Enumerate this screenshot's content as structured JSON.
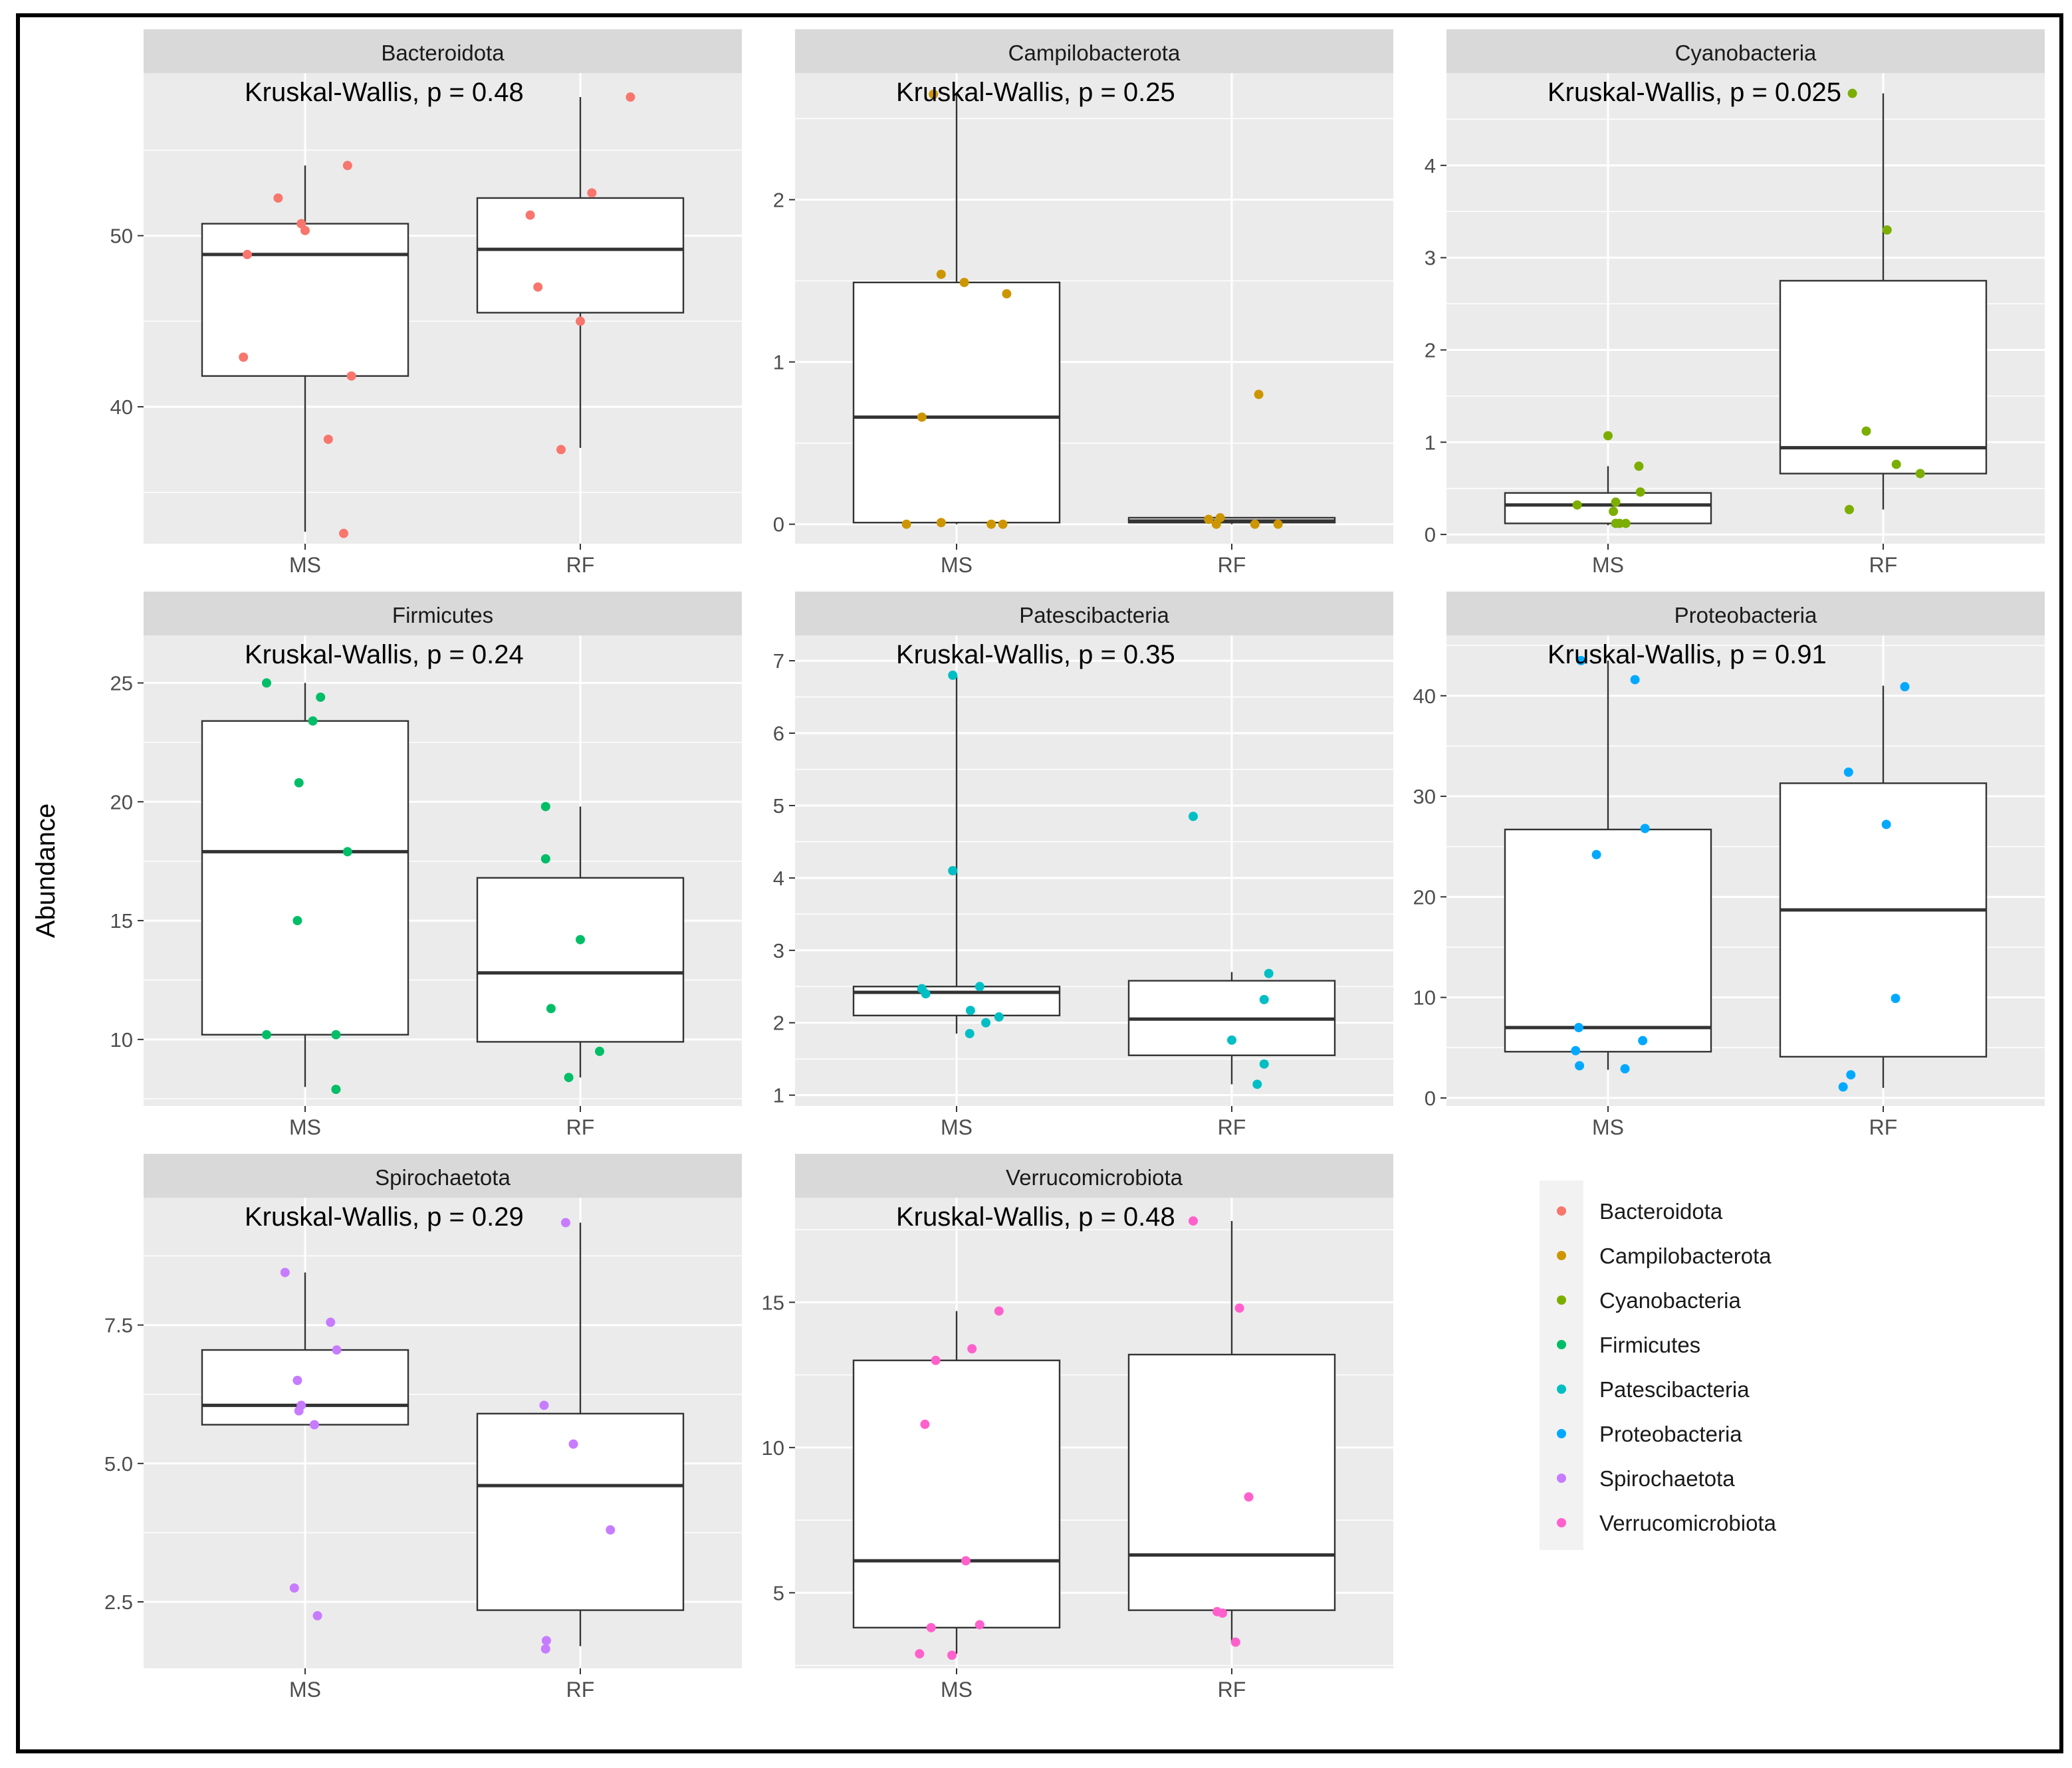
{
  "figure": {
    "ylabel": "Abundance",
    "groups": [
      "MS",
      "RF"
    ]
  },
  "chart_data": [
    {
      "type": "box",
      "title": "Bacteroidota",
      "annotation": "Kruskal-Wallis, p = 0.48",
      "color": "#F8766D",
      "categories": [
        "MS",
        "RF"
      ],
      "ylim": [
        32,
        59.5
      ],
      "yticks": [
        40,
        50
      ],
      "ytick_labels": [
        "40",
        "50"
      ],
      "boxes": [
        {
          "group": "MS",
          "whisker_low": 32.7,
          "q1": 41.8,
          "median": 48.9,
          "q3": 50.7,
          "whisker_high": 54.1
        },
        {
          "group": "RF",
          "whisker_low": 37.6,
          "q1": 45.5,
          "median": 49.2,
          "q3": 52.2,
          "whisker_high": 58.1
        }
      ],
      "points": [
        {
          "group": "MS",
          "y": 52.2,
          "jitter": -0.35
        },
        {
          "group": "MS",
          "y": 50.7,
          "jitter": -0.05
        },
        {
          "group": "MS",
          "y": 50.3,
          "jitter": 0.0
        },
        {
          "group": "MS",
          "y": 54.1,
          "jitter": 0.55
        },
        {
          "group": "MS",
          "y": 48.9,
          "jitter": -0.75
        },
        {
          "group": "MS",
          "y": 42.9,
          "jitter": -0.8
        },
        {
          "group": "MS",
          "y": 41.8,
          "jitter": 0.6
        },
        {
          "group": "MS",
          "y": 38.1,
          "jitter": 0.3
        },
        {
          "group": "MS",
          "y": 32.6,
          "jitter": 0.5
        },
        {
          "group": "RF",
          "y": 58.1,
          "jitter": 0.65
        },
        {
          "group": "RF",
          "y": 52.5,
          "jitter": 0.15
        },
        {
          "group": "RF",
          "y": 51.2,
          "jitter": -0.65
        },
        {
          "group": "RF",
          "y": 47.0,
          "jitter": -0.55
        },
        {
          "group": "RF",
          "y": 45.0,
          "jitter": 0.0
        },
        {
          "group": "RF",
          "y": 37.5,
          "jitter": -0.25
        }
      ]
    },
    {
      "type": "box",
      "title": "Campilobacterota",
      "annotation": "Kruskal-Wallis, p = 0.25",
      "color": "#CD9600",
      "categories": [
        "MS",
        "RF"
      ],
      "ylim": [
        -0.12,
        2.78
      ],
      "yticks": [
        0,
        1,
        2
      ],
      "ytick_labels": [
        "0",
        "1",
        "2"
      ],
      "boxes": [
        {
          "group": "MS",
          "whisker_low": 0.0,
          "q1": 0.01,
          "median": 0.66,
          "q3": 1.49,
          "whisker_high": 2.65
        },
        {
          "group": "RF",
          "whisker_low": 0.0,
          "q1": 0.01,
          "median": 0.02,
          "q3": 0.04,
          "whisker_high": 0.04
        }
      ],
      "points": [
        {
          "group": "MS",
          "y": 2.65,
          "jitter": -0.3
        },
        {
          "group": "MS",
          "y": 1.54,
          "jitter": -0.2
        },
        {
          "group": "MS",
          "y": 1.49,
          "jitter": 0.1
        },
        {
          "group": "MS",
          "y": 1.42,
          "jitter": 0.65
        },
        {
          "group": "MS",
          "y": 0.66,
          "jitter": -0.45
        },
        {
          "group": "MS",
          "y": 0.0,
          "jitter": -0.65
        },
        {
          "group": "MS",
          "y": 0.01,
          "jitter": -0.2
        },
        {
          "group": "MS",
          "y": 0.0,
          "jitter": 0.45
        },
        {
          "group": "MS",
          "y": 0.0,
          "jitter": 0.6
        },
        {
          "group": "RF",
          "y": 0.8,
          "jitter": 0.35
        },
        {
          "group": "RF",
          "y": 0.03,
          "jitter": -0.3
        },
        {
          "group": "RF",
          "y": 0.04,
          "jitter": -0.15
        },
        {
          "group": "RF",
          "y": 0.0,
          "jitter": -0.2
        },
        {
          "group": "RF",
          "y": 0.0,
          "jitter": 0.3
        },
        {
          "group": "RF",
          "y": 0.0,
          "jitter": 0.6
        }
      ]
    },
    {
      "type": "box",
      "title": "Cyanobacteria",
      "annotation": "Kruskal-Wallis, p = 0.025",
      "color": "#7CAE00",
      "categories": [
        "MS",
        "RF"
      ],
      "ylim": [
        -0.1,
        5.0
      ],
      "yticks": [
        0,
        1,
        2,
        3,
        4
      ],
      "ytick_labels": [
        "0",
        "1",
        "2",
        "3",
        "4"
      ],
      "boxes": [
        {
          "group": "MS",
          "whisker_low": 0.1,
          "q1": 0.12,
          "median": 0.32,
          "q3": 0.45,
          "whisker_high": 0.74
        },
        {
          "group": "RF",
          "whisker_low": 0.27,
          "q1": 0.66,
          "median": 0.94,
          "q3": 2.75,
          "whisker_high": 4.78
        }
      ],
      "points": [
        {
          "group": "MS",
          "y": 1.07,
          "jitter": 0.0
        },
        {
          "group": "MS",
          "y": 0.74,
          "jitter": 0.4
        },
        {
          "group": "MS",
          "y": 0.46,
          "jitter": 0.42
        },
        {
          "group": "MS",
          "y": 0.35,
          "jitter": 0.1
        },
        {
          "group": "MS",
          "y": 0.32,
          "jitter": -0.4
        },
        {
          "group": "MS",
          "y": 0.25,
          "jitter": 0.07
        },
        {
          "group": "MS",
          "y": 0.12,
          "jitter": 0.1
        },
        {
          "group": "MS",
          "y": 0.12,
          "jitter": 0.15
        },
        {
          "group": "MS",
          "y": 0.12,
          "jitter": 0.23
        },
        {
          "group": "RF",
          "y": 4.78,
          "jitter": -0.4
        },
        {
          "group": "RF",
          "y": 3.3,
          "jitter": 0.05
        },
        {
          "group": "RF",
          "y": 1.12,
          "jitter": -0.22
        },
        {
          "group": "RF",
          "y": 0.76,
          "jitter": 0.17
        },
        {
          "group": "RF",
          "y": 0.66,
          "jitter": 0.48
        },
        {
          "group": "RF",
          "y": 0.27,
          "jitter": -0.44
        }
      ]
    },
    {
      "type": "box",
      "title": "Firmicutes",
      "annotation": "Kruskal-Wallis, p = 0.24",
      "color": "#00BE67",
      "categories": [
        "MS",
        "RF"
      ],
      "ylim": [
        7.2,
        27.0
      ],
      "yticks": [
        10,
        15,
        20,
        25
      ],
      "ytick_labels": [
        "10",
        "15",
        "20",
        "25"
      ],
      "boxes": [
        {
          "group": "MS",
          "whisker_low": 8.0,
          "q1": 10.2,
          "median": 17.9,
          "q3": 23.4,
          "whisker_high": 25.0
        },
        {
          "group": "RF",
          "whisker_low": 8.4,
          "q1": 9.9,
          "median": 12.8,
          "q3": 16.8,
          "whisker_high": 19.8
        }
      ],
      "points": [
        {
          "group": "MS",
          "y": 25.0,
          "jitter": -0.5
        },
        {
          "group": "MS",
          "y": 24.4,
          "jitter": 0.2
        },
        {
          "group": "MS",
          "y": 23.4,
          "jitter": 0.1
        },
        {
          "group": "MS",
          "y": 20.8,
          "jitter": -0.08
        },
        {
          "group": "MS",
          "y": 17.9,
          "jitter": 0.55
        },
        {
          "group": "MS",
          "y": 15.0,
          "jitter": -0.1
        },
        {
          "group": "MS",
          "y": 10.2,
          "jitter": -0.5
        },
        {
          "group": "MS",
          "y": 10.2,
          "jitter": 0.4
        },
        {
          "group": "MS",
          "y": 7.9,
          "jitter": 0.4
        },
        {
          "group": "RF",
          "y": 19.8,
          "jitter": -0.45
        },
        {
          "group": "RF",
          "y": 17.6,
          "jitter": -0.45
        },
        {
          "group": "RF",
          "y": 14.2,
          "jitter": 0.0
        },
        {
          "group": "RF",
          "y": 11.3,
          "jitter": -0.38
        },
        {
          "group": "RF",
          "y": 9.5,
          "jitter": 0.25
        },
        {
          "group": "RF",
          "y": 8.4,
          "jitter": -0.15
        }
      ]
    },
    {
      "type": "box",
      "title": "Patescibacteria",
      "annotation": "Kruskal-Wallis, p = 0.35",
      "color": "#00BFC4",
      "categories": [
        "MS",
        "RF"
      ],
      "ylim": [
        0.85,
        7.35
      ],
      "yticks": [
        1,
        2,
        3,
        4,
        5,
        6,
        7
      ],
      "ytick_labels": [
        "1",
        "2",
        "3",
        "4",
        "5",
        "6",
        "7"
      ],
      "boxes": [
        {
          "group": "MS",
          "whisker_low": 1.85,
          "q1": 2.1,
          "median": 2.42,
          "q3": 2.5,
          "whisker_high": 6.8
        },
        {
          "group": "RF",
          "whisker_low": 1.15,
          "q1": 1.55,
          "median": 2.05,
          "q3": 2.58,
          "whisker_high": 2.7
        }
      ],
      "points": [
        {
          "group": "MS",
          "y": 6.8,
          "jitter": -0.05
        },
        {
          "group": "MS",
          "y": 4.1,
          "jitter": -0.05
        },
        {
          "group": "MS",
          "y": 2.5,
          "jitter": 0.3
        },
        {
          "group": "MS",
          "y": 2.47,
          "jitter": -0.45
        },
        {
          "group": "MS",
          "y": 2.4,
          "jitter": -0.4
        },
        {
          "group": "MS",
          "y": 2.17,
          "jitter": 0.18
        },
        {
          "group": "MS",
          "y": 2.08,
          "jitter": 0.55
        },
        {
          "group": "MS",
          "y": 2.0,
          "jitter": 0.38
        },
        {
          "group": "MS",
          "y": 1.85,
          "jitter": 0.17
        },
        {
          "group": "RF",
          "y": 4.85,
          "jitter": -0.5
        },
        {
          "group": "RF",
          "y": 2.68,
          "jitter": 0.48
        },
        {
          "group": "RF",
          "y": 2.32,
          "jitter": 0.42
        },
        {
          "group": "RF",
          "y": 1.76,
          "jitter": 0.0
        },
        {
          "group": "RF",
          "y": 1.43,
          "jitter": 0.42
        },
        {
          "group": "RF",
          "y": 1.15,
          "jitter": 0.33
        }
      ]
    },
    {
      "type": "box",
      "title": "Proteobacteria",
      "annotation": "Kruskal-Wallis, p = 0.91",
      "color": "#00A9FF",
      "categories": [
        "MS",
        "RF"
      ],
      "ylim": [
        -0.8,
        46.0
      ],
      "yticks": [
        0,
        10,
        20,
        30,
        40
      ],
      "ytick_labels": [
        "0",
        "10",
        "20",
        "30",
        "40"
      ],
      "boxes": [
        {
          "group": "MS",
          "whisker_low": 2.8,
          "q1": 4.6,
          "median": 7.0,
          "q3": 26.7,
          "whisker_high": 43.5
        },
        {
          "group": "RF",
          "whisker_low": 1.0,
          "q1": 4.1,
          "median": 18.7,
          "q3": 31.3,
          "whisker_high": 41.0
        }
      ],
      "points": [
        {
          "group": "MS",
          "y": 43.5,
          "jitter": -0.35
        },
        {
          "group": "MS",
          "y": 41.6,
          "jitter": 0.35
        },
        {
          "group": "MS",
          "y": 26.8,
          "jitter": 0.48
        },
        {
          "group": "MS",
          "y": 24.2,
          "jitter": -0.15
        },
        {
          "group": "MS",
          "y": 7.0,
          "jitter": -0.38
        },
        {
          "group": "MS",
          "y": 5.7,
          "jitter": 0.45
        },
        {
          "group": "MS",
          "y": 4.7,
          "jitter": -0.42
        },
        {
          "group": "MS",
          "y": 3.2,
          "jitter": -0.37
        },
        {
          "group": "MS",
          "y": 2.9,
          "jitter": 0.22
        },
        {
          "group": "RF",
          "y": 40.9,
          "jitter": 0.28
        },
        {
          "group": "RF",
          "y": 32.4,
          "jitter": -0.45
        },
        {
          "group": "RF",
          "y": 27.2,
          "jitter": 0.04
        },
        {
          "group": "RF",
          "y": 9.9,
          "jitter": 0.16
        },
        {
          "group": "RF",
          "y": 2.3,
          "jitter": -0.42
        },
        {
          "group": "RF",
          "y": 1.1,
          "jitter": -0.52
        }
      ]
    },
    {
      "type": "box",
      "title": "Spirochaetota",
      "annotation": "Kruskal-Wallis, p = 0.29",
      "color": "#C77CFF",
      "categories": [
        "MS",
        "RF"
      ],
      "ylim": [
        1.3,
        9.8
      ],
      "yticks": [
        2.5,
        5.0,
        7.5
      ],
      "ytick_labels": [
        "2.5",
        "5.0",
        "7.5"
      ],
      "boxes": [
        {
          "group": "MS",
          "whisker_low": 5.7,
          "q1": 5.7,
          "median": 6.05,
          "q3": 7.05,
          "whisker_high": 8.45
        },
        {
          "group": "RF",
          "whisker_low": 1.7,
          "q1": 2.35,
          "median": 4.6,
          "q3": 5.9,
          "whisker_high": 9.35
        }
      ],
      "points": [
        {
          "group": "MS",
          "y": 8.45,
          "jitter": -0.26
        },
        {
          "group": "MS",
          "y": 7.55,
          "jitter": 0.33
        },
        {
          "group": "MS",
          "y": 7.05,
          "jitter": 0.41
        },
        {
          "group": "MS",
          "y": 6.5,
          "jitter": -0.1
        },
        {
          "group": "MS",
          "y": 6.05,
          "jitter": -0.05
        },
        {
          "group": "MS",
          "y": 5.95,
          "jitter": -0.08
        },
        {
          "group": "MS",
          "y": 5.7,
          "jitter": 0.12
        },
        {
          "group": "MS",
          "y": 2.75,
          "jitter": -0.14
        },
        {
          "group": "MS",
          "y": 2.25,
          "jitter": 0.16
        },
        {
          "group": "RF",
          "y": 9.35,
          "jitter": -0.19
        },
        {
          "group": "RF",
          "y": 6.05,
          "jitter": -0.47
        },
        {
          "group": "RF",
          "y": 5.35,
          "jitter": -0.09
        },
        {
          "group": "RF",
          "y": 3.8,
          "jitter": 0.39
        },
        {
          "group": "RF",
          "y": 1.8,
          "jitter": -0.44
        },
        {
          "group": "RF",
          "y": 1.65,
          "jitter": -0.45
        }
      ]
    },
    {
      "type": "box",
      "title": "Verrucomicrobiota",
      "annotation": "Kruskal-Wallis, p = 0.48",
      "color": "#FF61CC",
      "categories": [
        "MS",
        "RF"
      ],
      "ylim": [
        2.4,
        18.6
      ],
      "yticks": [
        5,
        10,
        15
      ],
      "ytick_labels": [
        "5",
        "10",
        "15"
      ],
      "boxes": [
        {
          "group": "MS",
          "whisker_low": 2.9,
          "q1": 3.8,
          "median": 6.1,
          "q3": 13.0,
          "whisker_high": 14.7
        },
        {
          "group": "RF",
          "whisker_low": 3.3,
          "q1": 4.4,
          "median": 6.3,
          "q3": 13.2,
          "whisker_high": 17.8
        }
      ],
      "points": [
        {
          "group": "MS",
          "y": 14.7,
          "jitter": 0.55
        },
        {
          "group": "MS",
          "y": 13.4,
          "jitter": 0.2
        },
        {
          "group": "MS",
          "y": 13.0,
          "jitter": -0.27
        },
        {
          "group": "MS",
          "y": 10.8,
          "jitter": -0.41
        },
        {
          "group": "MS",
          "y": 6.1,
          "jitter": 0.12
        },
        {
          "group": "MS",
          "y": 3.9,
          "jitter": 0.3
        },
        {
          "group": "MS",
          "y": 3.8,
          "jitter": -0.33
        },
        {
          "group": "MS",
          "y": 2.9,
          "jitter": -0.48
        },
        {
          "group": "MS",
          "y": 2.85,
          "jitter": -0.06
        },
        {
          "group": "RF",
          "y": 17.8,
          "jitter": -0.5
        },
        {
          "group": "RF",
          "y": 14.8,
          "jitter": 0.1
        },
        {
          "group": "RF",
          "y": 8.3,
          "jitter": 0.22
        },
        {
          "group": "RF",
          "y": 4.35,
          "jitter": -0.19
        },
        {
          "group": "RF",
          "y": 4.3,
          "jitter": -0.12
        },
        {
          "group": "RF",
          "y": 3.3,
          "jitter": 0.05
        }
      ]
    }
  ],
  "legend": {
    "position": "bottom-right",
    "entries": [
      {
        "label": "Bacteroidota",
        "color": "#F8766D"
      },
      {
        "label": "Campilobacterota",
        "color": "#CD9600"
      },
      {
        "label": "Cyanobacteria",
        "color": "#7CAE00"
      },
      {
        "label": "Firmicutes",
        "color": "#00BE67"
      },
      {
        "label": "Patescibacteria",
        "color": "#00BFC4"
      },
      {
        "label": "Proteobacteria",
        "color": "#00A9FF"
      },
      {
        "label": "Spirochaetota",
        "color": "#C77CFF"
      },
      {
        "label": "Verrucomicrobiota",
        "color": "#FF61CC"
      }
    ]
  }
}
